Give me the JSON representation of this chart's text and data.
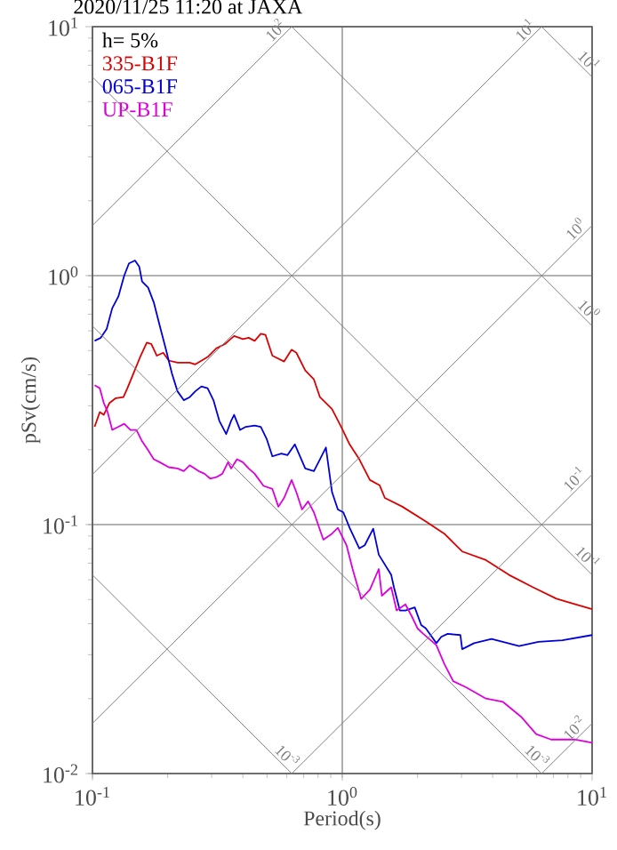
{
  "chart_data": {
    "type": "line",
    "title": "2020/11/25 11:20 at JAXA",
    "xlabel": "Period(s)",
    "ylabel": "pSv(cm/s)",
    "legend_title": "h= 5%",
    "legend": "top left",
    "log": "xy",
    "grid": true,
    "xlim": [
      0.1,
      10
    ],
    "ylim": [
      0.01,
      10
    ],
    "xticks": [
      {
        "value": 0.1,
        "label": "10$^{-1}$"
      },
      {
        "value": 1,
        "label": "10$^{0}$"
      },
      {
        "value": 10,
        "label": "10$^{1}$"
      }
    ],
    "yticks": [
      {
        "value": 0.01,
        "label": "10$^{-2}$"
      },
      {
        "value": 0.1,
        "label": "10$^{-1}$"
      },
      {
        "value": 1,
        "label": "10$^{0}$"
      },
      {
        "value": 10,
        "label": "10$^{1}$"
      }
    ],
    "series": [
      {
        "name": "335-B1F",
        "color": "#dd0000",
        "x": [
          0.102,
          0.107,
          0.111,
          0.117,
          0.124,
          0.133,
          0.138,
          0.146,
          0.156,
          0.165,
          0.172,
          0.181,
          0.192,
          0.202,
          0.219,
          0.245,
          0.258,
          0.289,
          0.313,
          0.34,
          0.369,
          0.4,
          0.422,
          0.446,
          0.472,
          0.493,
          0.525,
          0.585,
          0.627,
          0.655,
          0.711,
          0.77,
          0.814,
          0.91,
          0.99,
          1.07,
          1.17,
          1.29,
          1.41,
          1.48,
          1.74,
          2.16,
          2.56,
          3.02,
          3.76,
          4.65,
          5.8,
          7.2,
          8.5,
          10
        ],
        "values": [
          0.247,
          0.283,
          0.276,
          0.308,
          0.322,
          0.325,
          0.353,
          0.405,
          0.477,
          0.538,
          0.532,
          0.477,
          0.49,
          0.456,
          0.447,
          0.447,
          0.44,
          0.471,
          0.51,
          0.532,
          0.572,
          0.556,
          0.563,
          0.547,
          0.584,
          0.578,
          0.477,
          0.452,
          0.504,
          0.49,
          0.416,
          0.383,
          0.325,
          0.291,
          0.247,
          0.21,
          0.183,
          0.151,
          0.144,
          0.128,
          0.118,
          0.103,
          0.092,
          0.078,
          0.072,
          0.0628,
          0.056,
          0.0504,
          0.048,
          0.0457
        ]
      },
      {
        "name": "065-B1F",
        "color": "#0000dd",
        "x": [
          0.102,
          0.108,
          0.114,
          0.12,
          0.127,
          0.134,
          0.14,
          0.148,
          0.154,
          0.158,
          0.167,
          0.176,
          0.186,
          0.197,
          0.208,
          0.219,
          0.232,
          0.245,
          0.258,
          0.273,
          0.289,
          0.305,
          0.322,
          0.343,
          0.359,
          0.369,
          0.39,
          0.411,
          0.446,
          0.472,
          0.498,
          0.525,
          0.57,
          0.603,
          0.646,
          0.67,
          0.711,
          0.77,
          0.814,
          0.86,
          0.91,
          0.96,
          1.01,
          1.07,
          1.17,
          1.23,
          1.33,
          1.4,
          1.57,
          1.61,
          1.7,
          1.79,
          1.95,
          2.07,
          2.16,
          2.38,
          2.49,
          2.64,
          2.97,
          3.02,
          3.37,
          3.96,
          5.1,
          6.1,
          7.6,
          10
        ],
        "values": [
          0.547,
          0.563,
          0.611,
          0.74,
          0.825,
          1.0,
          1.12,
          1.15,
          1.085,
          0.947,
          0.896,
          0.781,
          0.628,
          0.504,
          0.405,
          0.343,
          0.316,
          0.325,
          0.343,
          0.359,
          0.353,
          0.316,
          0.261,
          0.231,
          0.261,
          0.276,
          0.24,
          0.247,
          0.25,
          0.247,
          0.221,
          0.188,
          0.193,
          0.19,
          0.21,
          0.193,
          0.168,
          0.164,
          0.183,
          0.204,
          0.135,
          0.115,
          0.112,
          0.097,
          0.0802,
          0.0826,
          0.0963,
          0.0757,
          0.0628,
          0.056,
          0.0452,
          0.0452,
          0.0465,
          0.0395,
          0.0383,
          0.0334,
          0.0354,
          0.0364,
          0.036,
          0.0316,
          0.0334,
          0.0347,
          0.0325,
          0.0338,
          0.0343,
          0.036
        ]
      },
      {
        "name": "UP-B1F",
        "color": "#dd00dd",
        "x": [
          0.102,
          0.107,
          0.111,
          0.115,
          0.12,
          0.127,
          0.134,
          0.142,
          0.15,
          0.158,
          0.167,
          0.176,
          0.186,
          0.202,
          0.219,
          0.232,
          0.245,
          0.266,
          0.281,
          0.296,
          0.313,
          0.331,
          0.349,
          0.359,
          0.379,
          0.4,
          0.422,
          0.446,
          0.484,
          0.525,
          0.555,
          0.585,
          0.627,
          0.655,
          0.69,
          0.73,
          0.77,
          0.84,
          0.91,
          0.96,
          1.04,
          1.1,
          1.19,
          1.29,
          1.4,
          1.44,
          1.57,
          1.65,
          1.79,
          1.9,
          2.0,
          2.11,
          2.38,
          2.56,
          2.78,
          3.13,
          3.76,
          4.4,
          5.2,
          5.97,
          6.85,
          8.5,
          10
        ],
        "values": [
          0.363,
          0.353,
          0.308,
          0.283,
          0.24,
          0.247,
          0.254,
          0.24,
          0.24,
          0.216,
          0.199,
          0.183,
          0.178,
          0.17,
          0.168,
          0.164,
          0.173,
          0.164,
          0.16,
          0.153,
          0.155,
          0.16,
          0.178,
          0.168,
          0.183,
          0.178,
          0.168,
          0.16,
          0.143,
          0.139,
          0.118,
          0.128,
          0.151,
          0.135,
          0.115,
          0.124,
          0.112,
          0.087,
          0.092,
          0.097,
          0.0826,
          0.0663,
          0.0503,
          0.0548,
          0.0663,
          0.0518,
          0.056,
          0.0452,
          0.0478,
          0.0427,
          0.0383,
          0.0364,
          0.0328,
          0.0276,
          0.0235,
          0.0222,
          0.02,
          0.0194,
          0.0169,
          0.0144,
          0.0137,
          0.0137,
          0.0133
        ]
      },
      {
        "name": "10$^{2}$",
        "color": "#808080",
        "x": [
          0.1,
          0.628
        ],
        "values": [
          1.59,
          10
        ]
      },
      {
        "name": "10$^{1}$",
        "color": "#808080",
        "x": [
          0.1,
          6.28
        ],
        "values": [
          0.159,
          10
        ]
      },
      {
        "name": "10$^{0}$",
        "color": "#808080",
        "x": [
          0.1,
          10
        ],
        "values": [
          0.0159,
          1.59
        ]
      },
      {
        "name": "10$^{-1}$",
        "color": "#808080",
        "x": [
          0.628,
          10
        ],
        "values": [
          0.01,
          0.159
        ]
      },
      {
        "name": "10$^{-2}$",
        "color": "#808080",
        "x": [
          6.28,
          10
        ],
        "values": [
          0.01,
          0.0159
        ]
      },
      {
        "name": "10$^{1}$",
        "color": "#808080",
        "x": [
          6.28,
          10
        ],
        "values": [
          10,
          6.28
        ]
      },
      {
        "name": "10$^{0}$",
        "color": "#808080",
        "x": [
          0.628,
          10
        ],
        "values": [
          10,
          0.628
        ]
      },
      {
        "name": "10$^{-1}$",
        "color": "#808080",
        "x": [
          0.1,
          10
        ],
        "values": [
          6.28,
          0.0628
        ]
      },
      {
        "name": "10$^{-3}$",
        "color": "#808080",
        "x": [
          0.1,
          6.28
        ],
        "values": [
          0.628,
          0.01
        ]
      },
      {
        "name": "10$^{-3}$",
        "color": "#808080",
        "x": [
          0.1,
          0.628
        ],
        "values": [
          0.0628,
          0.01
        ]
      }
    ]
  }
}
